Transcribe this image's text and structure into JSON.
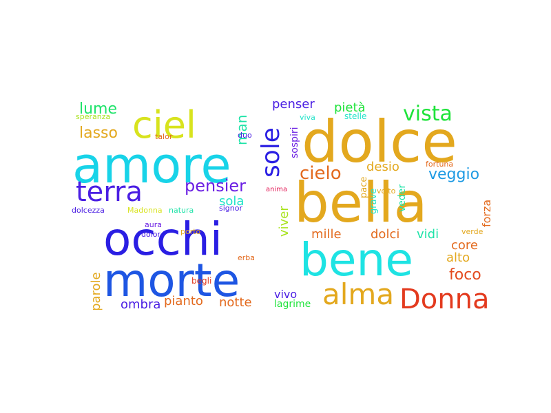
{
  "words": [
    {
      "text": "dolce",
      "color": "#e3a81e",
      "rot": 0
    },
    {
      "text": "bella",
      "color": "#e3a81e",
      "rot": 0
    },
    {
      "text": "amore",
      "color": "#18d3e8",
      "rot": 0
    },
    {
      "text": "bene",
      "color": "#1ee3e3",
      "rot": 0
    },
    {
      "text": "occhi",
      "color": "#2a1ee3",
      "rot": 0
    },
    {
      "text": "morte",
      "color": "#1e56e3",
      "rot": 0
    },
    {
      "text": "ciel",
      "color": "#d8e31e",
      "rot": 0
    },
    {
      "text": "terra",
      "color": "#4a1ee3",
      "rot": 0
    },
    {
      "text": "Donna",
      "color": "#e33a1e",
      "rot": 0
    },
    {
      "text": "alma",
      "color": "#e3a81e",
      "rot": 0
    },
    {
      "text": "sole",
      "color": "#2a1ee3",
      "rot": -90
    },
    {
      "text": "vista",
      "color": "#1ee33a",
      "rot": 0
    },
    {
      "text": "cielo",
      "color": "#e36a1e",
      "rot": 0
    },
    {
      "text": "pensier",
      "color": "#6a1ee3",
      "rot": 0
    },
    {
      "text": "veggio",
      "color": "#1e9ae3",
      "rot": 0
    },
    {
      "text": "foco",
      "color": "#e34a1e",
      "rot": 0
    },
    {
      "text": "lume",
      "color": "#1ee36a",
      "rot": 0
    },
    {
      "text": "lasso",
      "color": "#e3a81e",
      "rot": 0
    },
    {
      "text": "penser",
      "color": "#4a1ee3",
      "rot": 0
    },
    {
      "text": "pietà",
      "color": "#1ee33a",
      "rot": 0
    },
    {
      "text": "desio",
      "color": "#e3a81e",
      "rot": 0
    },
    {
      "text": "man",
      "color": "#1ee3a8",
      "rot": -90
    },
    {
      "text": "sola",
      "color": "#1ee3c8",
      "rot": 0
    },
    {
      "text": "mille",
      "color": "#e36a1e",
      "rot": 0
    },
    {
      "text": "dolci",
      "color": "#e36a1e",
      "rot": 0
    },
    {
      "text": "vidi",
      "color": "#1ee3a8",
      "rot": 0
    },
    {
      "text": "core",
      "color": "#e36a1e",
      "rot": 0
    },
    {
      "text": "alto",
      "color": "#e3a81e",
      "rot": 0
    },
    {
      "text": "forza",
      "color": "#e36a1e",
      "rot": -90
    },
    {
      "text": "viver",
      "color": "#a8e31e",
      "rot": -90
    },
    {
      "text": "parole",
      "color": "#e3a81e",
      "rot": -90
    },
    {
      "text": "ombra",
      "color": "#4a1ee3",
      "rot": 0
    },
    {
      "text": "pianto",
      "color": "#e36a1e",
      "rot": 0
    },
    {
      "text": "notte",
      "color": "#e36a1e",
      "rot": 0
    },
    {
      "text": "vivo",
      "color": "#4a1ee3",
      "rot": 0
    },
    {
      "text": "lagrime",
      "color": "#1ee33a",
      "rot": 0
    },
    {
      "text": "sospiri",
      "color": "#6a1ee3",
      "rot": -90
    },
    {
      "text": "veder",
      "color": "#1ee3a8",
      "rot": -90
    },
    {
      "text": "grave",
      "color": "#1ee3c8",
      "rot": -90
    },
    {
      "text": "pace",
      "color": "#e3a81e",
      "rot": -90
    },
    {
      "text": "fortuna",
      "color": "#e36a1e",
      "rot": 0
    },
    {
      "text": "volto",
      "color": "#e3a81e",
      "rot": 0
    },
    {
      "text": "anima",
      "color": "#e31e5a",
      "rot": 0
    },
    {
      "text": "speranza",
      "color": "#a8e31e",
      "rot": 0
    },
    {
      "text": "talor",
      "color": "#e36a1e",
      "rot": 0
    },
    {
      "text": "duo",
      "color": "#4a1ee3",
      "rot": 0
    },
    {
      "text": "viva",
      "color": "#1ee3c8",
      "rot": 0
    },
    {
      "text": "stelle",
      "color": "#1ee3c8",
      "rot": 0
    },
    {
      "text": "dolcezza",
      "color": "#4a1ee3",
      "rot": 0
    },
    {
      "text": "Madonna",
      "color": "#d8e31e",
      "rot": 0
    },
    {
      "text": "natura",
      "color": "#1ee3a8",
      "rot": 0
    },
    {
      "text": "signor",
      "color": "#4a1ee3",
      "rot": 0
    },
    {
      "text": "aura",
      "color": "#6a1ee3",
      "rot": 0
    },
    {
      "text": "dolor",
      "color": "#4a1ee3",
      "rot": 0
    },
    {
      "text": "porto",
      "color": "#e3a81e",
      "rot": 0
    },
    {
      "text": "erba",
      "color": "#e36a1e",
      "rot": 0
    },
    {
      "text": "begli",
      "color": "#e33a1e",
      "rot": 0
    },
    {
      "text": "verde",
      "color": "#e3a81e",
      "rot": 0
    }
  ]
}
